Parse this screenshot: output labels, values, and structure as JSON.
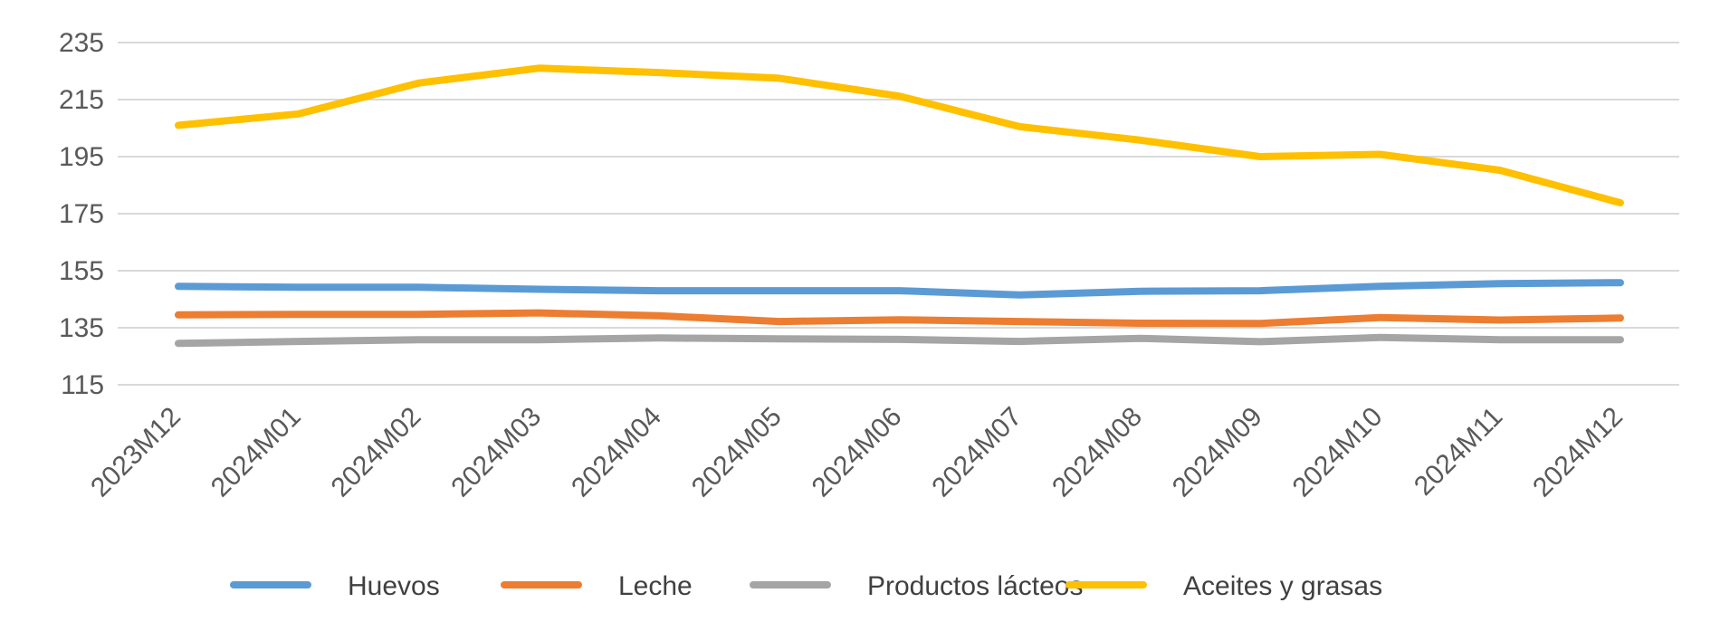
{
  "chart_data": {
    "type": "line",
    "title": "",
    "xlabel": "",
    "ylabel": "",
    "categories": [
      "2023M12",
      "2024M01",
      "2024M02",
      "2024M03",
      "2024M04",
      "2024M05",
      "2024M06",
      "2024M07",
      "2024M08",
      "2024M09",
      "2024M10",
      "2024M11",
      "2024M12"
    ],
    "ylim": [
      115,
      235
    ],
    "yticks": [
      115,
      135,
      155,
      175,
      195,
      215,
      235
    ],
    "grid": true,
    "legend_position": "bottom",
    "series": [
      {
        "name": "Huevos",
        "color": "#5B9BD5",
        "values": [
          149.5,
          149.2,
          149.2,
          148.5,
          148.0,
          148.0,
          148.0,
          146.5,
          147.8,
          148.0,
          149.5,
          150.5,
          150.8
        ]
      },
      {
        "name": "Leche",
        "color": "#ED7D31",
        "values": [
          139.5,
          139.7,
          139.7,
          140.2,
          139.2,
          137.2,
          137.8,
          137.2,
          136.6,
          136.5,
          138.6,
          137.7,
          138.4
        ]
      },
      {
        "name": "Productos lácteos",
        "color": "#A5A5A5",
        "values": [
          129.5,
          130.2,
          130.8,
          130.8,
          131.4,
          131.1,
          130.9,
          130.2,
          131.3,
          130.1,
          131.6,
          130.8,
          130.8
        ]
      },
      {
        "name": "Aceites y grasas",
        "color": "#FFC000",
        "values": [
          206.0,
          210.0,
          220.8,
          226.0,
          224.5,
          222.5,
          216.2,
          205.5,
          200.8,
          195.0,
          195.8,
          190.2,
          178.8
        ]
      }
    ]
  }
}
